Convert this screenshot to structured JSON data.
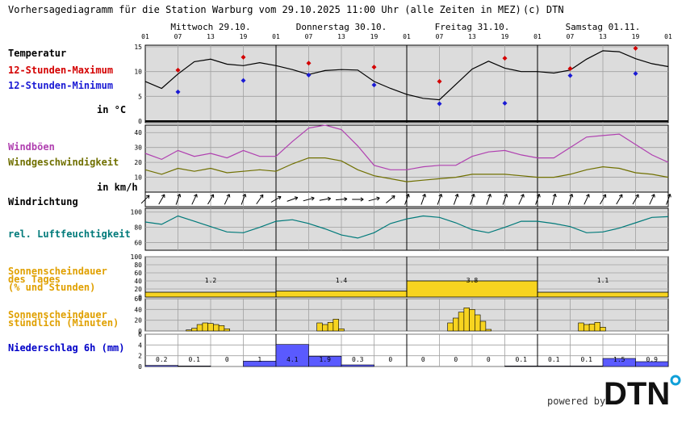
{
  "header": {
    "title": "Vorhersagediagramm für die Station Warburg vom 29.10.2025 11:00 Uhr (alle Zeiten in MEZ)",
    "copyright": "(c) DTN"
  },
  "days": [
    "Mittwoch 29.10.",
    "Donnerstag 30.10.",
    "Freitag 31.10.",
    "Samstag 01.11."
  ],
  "hour_ticks": [
    "01",
    "07",
    "13",
    "19",
    "01",
    "07",
    "13",
    "19",
    "01",
    "07",
    "13",
    "19",
    "01",
    "07",
    "13",
    "19",
    "01"
  ],
  "labels": {
    "temp": "Temperatur",
    "tmax": "12-Stunden-Maximum",
    "tmin": "12-Stunden-Minimum",
    "temp_unit": "in °C",
    "gust": "Windböen",
    "wind": "Windgeschwindigkeit",
    "wind_unit": "in km/h",
    "dir": "Windrichtung",
    "hum": "rel. Luftfeuchtigkeit",
    "sun_day_1": "Sonnenscheindauer",
    "sun_day_2": "des Tages",
    "sun_day_3": "(% und Stunden)",
    "sun_hour_1": "Sonnenscheindauer",
    "sun_hour_2": "stündlich (Minuten)",
    "precip": "Niederschlag 6h (mm)"
  },
  "footer": {
    "powered_by": "powered by",
    "logo_text": "DTN"
  },
  "colors": {
    "temp_label": "#000000",
    "tmax": "#d40000",
    "tmin": "#1a1ad4",
    "gust": "#b040b0",
    "wind": "#707000",
    "hum": "#007a7a",
    "sun": "#e0a000",
    "sun_fill": "#f7d420",
    "precip": "#0000c8",
    "precip_fill": "#5a5aff",
    "panel_bg": "#dcdcdc",
    "grid": "#a0a0a0"
  },
  "chart_data": [
    {
      "type": "line",
      "name": "temperature",
      "x_hours": [
        0,
        3,
        6,
        9,
        12,
        15,
        18,
        21,
        24,
        27,
        30,
        33,
        36,
        39,
        42,
        45,
        48,
        51,
        54,
        57,
        60,
        63,
        66,
        69,
        72,
        75,
        78,
        81,
        84,
        87,
        90,
        93,
        96
      ],
      "values": [
        8,
        6.6,
        9.5,
        12,
        12.5,
        11.5,
        11.2,
        11.8,
        11.2,
        10.4,
        9.4,
        10.2,
        10.4,
        10.3,
        8.0,
        6.6,
        5.4,
        4.6,
        4.3,
        7.4,
        10.5,
        12.1,
        10.7,
        10.0,
        10.0,
        9.7,
        10.3,
        12.5,
        14.2,
        14.0,
        12.6,
        11.6,
        11.0
      ],
      "ylim": [
        0,
        15
      ],
      "yticks": [
        0,
        5,
        10,
        15
      ],
      "grid": true
    },
    {
      "type": "scatter",
      "name": "12-Stunden-Maximum",
      "x_hours": [
        6,
        18,
        30,
        42,
        54,
        66,
        78,
        90
      ],
      "values": [
        10.3,
        12.9,
        11.7,
        10.9,
        8.0,
        12.7,
        10.6,
        14.7
      ]
    },
    {
      "type": "scatter",
      "name": "12-Stunden-Minimum",
      "x_hours": [
        6,
        18,
        30,
        42,
        54,
        66,
        78,
        90
      ],
      "values": [
        5.9,
        8.2,
        9.3,
        7.3,
        3.5,
        3.6,
        9.2,
        9.6
      ]
    },
    {
      "type": "line",
      "name": "Windböen",
      "x_hours": [
        0,
        3,
        6,
        9,
        12,
        15,
        18,
        21,
        24,
        27,
        30,
        33,
        36,
        39,
        42,
        45,
        48,
        51,
        54,
        57,
        60,
        63,
        66,
        69,
        72,
        75,
        78,
        81,
        84,
        87,
        90,
        93,
        96
      ],
      "values": [
        26,
        22,
        28,
        24,
        26,
        23,
        28,
        24,
        24,
        34,
        43,
        45,
        42,
        31,
        18,
        15,
        15,
        17,
        18,
        18,
        24,
        27,
        28,
        25,
        23,
        23,
        30,
        37,
        38,
        39,
        32,
        25,
        20
      ],
      "ylim": [
        0,
        45
      ],
      "yticks": [
        10,
        20,
        30,
        40
      ]
    },
    {
      "type": "line",
      "name": "Windgeschwindigkeit",
      "x_hours": [
        0,
        3,
        6,
        9,
        12,
        15,
        18,
        21,
        24,
        27,
        30,
        33,
        36,
        39,
        42,
        45,
        48,
        51,
        54,
        57,
        60,
        63,
        66,
        69,
        72,
        75,
        78,
        81,
        84,
        87,
        90,
        93,
        96
      ],
      "values": [
        15,
        12,
        16,
        14,
        16,
        13,
        14,
        15,
        14,
        19,
        23,
        23,
        21,
        15,
        11,
        9,
        7,
        8,
        9,
        10,
        12,
        12,
        12,
        11,
        10,
        10,
        12,
        15,
        17,
        16,
        13,
        12,
        10
      ]
    },
    {
      "type": "line",
      "name": "Windrichtung",
      "x_hours": [
        0,
        3,
        6,
        9,
        12,
        15,
        18,
        21,
        24,
        27,
        30,
        33,
        36,
        39,
        42,
        45,
        48,
        51,
        54,
        57,
        60,
        63,
        66,
        69,
        72,
        75,
        78,
        81,
        84,
        87,
        90,
        93,
        96
      ],
      "values_deg": [
        225,
        210,
        200,
        205,
        210,
        205,
        200,
        215,
        240,
        250,
        255,
        260,
        265,
        270,
        255,
        230,
        200,
        200,
        200,
        200,
        200,
        200,
        200,
        205,
        200,
        195,
        200,
        205,
        210,
        210,
        210,
        205,
        200
      ]
    },
    {
      "type": "line",
      "name": "rel. Luftfeuchtigkeit",
      "x_hours": [
        0,
        3,
        6,
        9,
        12,
        15,
        18,
        21,
        24,
        27,
        30,
        33,
        36,
        39,
        42,
        45,
        48,
        51,
        54,
        57,
        60,
        63,
        66,
        69,
        72,
        75,
        78,
        81,
        84,
        87,
        90,
        93,
        96
      ],
      "values": [
        87,
        84,
        95,
        88,
        81,
        74,
        73,
        80,
        88,
        90,
        85,
        78,
        70,
        66,
        73,
        85,
        91,
        95,
        93,
        86,
        77,
        73,
        80,
        88,
        88,
        85,
        81,
        73,
        74,
        79,
        86,
        93,
        94
      ],
      "ylim": [
        50,
        105
      ],
      "yticks": [
        60,
        80,
        100
      ]
    },
    {
      "type": "bar",
      "name": "Sonnenscheindauer des Tages",
      "categories": [
        "Mittwoch 29.10.",
        "Donnerstag 30.10.",
        "Freitag 31.10.",
        "Samstag 01.11."
      ],
      "values_percent": [
        12,
        15,
        40,
        12
      ],
      "values_hours_labels": [
        "1.2",
        "1.4",
        "3.8",
        "1.1"
      ],
      "ylim": [
        0,
        100
      ],
      "yticks": [
        0,
        20,
        40,
        60,
        80,
        100
      ]
    },
    {
      "type": "bar",
      "name": "Sonnenscheindauer stündlich (Minuten)",
      "x_hours": [
        8,
        9,
        10,
        11,
        12,
        13,
        14,
        15,
        32,
        33,
        34,
        35,
        36,
        56,
        57,
        58,
        59,
        60,
        61,
        62,
        63,
        80,
        81,
        82,
        83,
        84
      ],
      "values": [
        2,
        5,
        12,
        15,
        14,
        12,
        10,
        4,
        15,
        12,
        16,
        22,
        4,
        15,
        24,
        35,
        43,
        40,
        30,
        18,
        3,
        15,
        12,
        13,
        16,
        7
      ],
      "ylim": [
        0,
        60
      ],
      "yticks": [
        0,
        20,
        40,
        60
      ]
    },
    {
      "type": "bar",
      "name": "Niederschlag 6h (mm)",
      "x_start_hours": [
        0,
        6,
        12,
        18,
        24,
        30,
        36,
        42,
        48,
        54,
        60,
        66,
        72,
        78,
        84,
        90
      ],
      "values": [
        0.2,
        0.1,
        0,
        1,
        4.1,
        1.9,
        0.3,
        0,
        0,
        0,
        0,
        0.1,
        0.1,
        0.1,
        1.5,
        0.9
      ],
      "value_labels": [
        "0.2",
        "0.1",
        "0",
        "1",
        "4.1",
        "1.9",
        "0.3",
        "0",
        "0",
        "0",
        "0",
        "0.1",
        "0.1",
        "0.1",
        "1.5",
        "0.9"
      ],
      "ylim": [
        0,
        6
      ],
      "yticks": [
        0,
        2,
        4,
        6
      ]
    }
  ]
}
